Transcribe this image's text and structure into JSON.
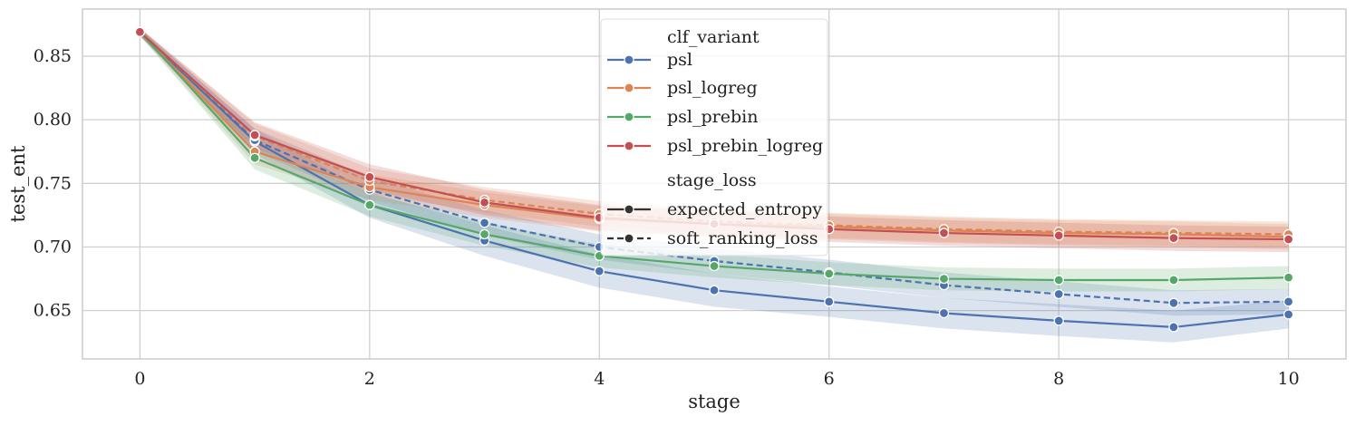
{
  "chart_data": {
    "type": "line",
    "xlabel": "stage",
    "ylabel": "test_ent",
    "xlim": [
      -0.5,
      10.5
    ],
    "ylim": [
      0.612,
      0.887
    ],
    "x_ticks": [
      0,
      2,
      4,
      6,
      8,
      10
    ],
    "x_tick_labels": [
      "0",
      "2",
      "4",
      "6",
      "8",
      "10"
    ],
    "y_ticks": [
      0.65,
      0.7,
      0.75,
      0.8,
      0.85
    ],
    "y_tick_labels": [
      "0.65",
      "0.70",
      "0.75",
      "0.80",
      "0.85"
    ],
    "grid": true,
    "legend_placement": "top-center",
    "legend": {
      "hue_title": "clf_variant",
      "style_title": "stage_loss",
      "hue_entries": [
        "psl",
        "psl_logreg",
        "psl_prebin",
        "psl_prebin_logreg"
      ],
      "style_entries": [
        "expected_entropy",
        "soft_ranking_loss"
      ]
    },
    "colors": {
      "psl": "#4c72b0",
      "psl_logreg": "#dd8452",
      "psl_prebin": "#55a868",
      "psl_prebin_logreg": "#c44e52",
      "legend_neutral": "#333333"
    },
    "x": [
      0,
      1,
      2,
      3,
      4,
      5,
      6,
      7,
      8,
      9,
      10
    ],
    "series": [
      {
        "clf_variant": "psl",
        "stage_loss": "expected_entropy",
        "values": [
          0.869,
          0.783,
          0.733,
          0.705,
          0.681,
          0.666,
          0.657,
          0.648,
          0.642,
          0.637,
          0.647
        ],
        "band": [
          [
            0.866,
            0.872
          ],
          [
            0.773,
            0.793
          ],
          [
            0.723,
            0.743
          ],
          [
            0.693,
            0.717
          ],
          [
            0.668,
            0.694
          ],
          [
            0.653,
            0.679
          ],
          [
            0.645,
            0.669
          ],
          [
            0.636,
            0.66
          ],
          [
            0.63,
            0.655
          ],
          [
            0.625,
            0.65
          ],
          [
            0.636,
            0.658
          ]
        ]
      },
      {
        "clf_variant": "psl",
        "stage_loss": "soft_ranking_loss",
        "values": [
          0.869,
          0.784,
          0.745,
          0.719,
          0.7,
          0.689,
          0.68,
          0.67,
          0.663,
          0.656,
          0.657
        ],
        "band": [
          [
            0.866,
            0.872
          ],
          [
            0.775,
            0.793
          ],
          [
            0.736,
            0.755
          ],
          [
            0.709,
            0.729
          ],
          [
            0.69,
            0.71
          ],
          [
            0.679,
            0.699
          ],
          [
            0.67,
            0.69
          ],
          [
            0.66,
            0.68
          ],
          [
            0.653,
            0.673
          ],
          [
            0.646,
            0.666
          ],
          [
            0.647,
            0.667
          ]
        ]
      },
      {
        "clf_variant": "psl_logreg",
        "stage_loss": "expected_entropy",
        "values": [
          0.869,
          0.775,
          0.747,
          0.733,
          0.722,
          0.718,
          0.716,
          0.713,
          0.711,
          0.71,
          0.708
        ],
        "band": [
          [
            0.866,
            0.872
          ],
          [
            0.765,
            0.785
          ],
          [
            0.737,
            0.757
          ],
          [
            0.723,
            0.743
          ],
          [
            0.712,
            0.732
          ],
          [
            0.708,
            0.728
          ],
          [
            0.706,
            0.726
          ],
          [
            0.703,
            0.723
          ],
          [
            0.701,
            0.721
          ],
          [
            0.7,
            0.72
          ],
          [
            0.698,
            0.718
          ]
        ]
      },
      {
        "clf_variant": "psl_logreg",
        "stage_loss": "soft_ranking_loss",
        "values": [
          0.869,
          0.787,
          0.752,
          0.737,
          0.726,
          0.72,
          0.717,
          0.714,
          0.712,
          0.711,
          0.71
        ],
        "band": [
          [
            0.866,
            0.872
          ],
          [
            0.777,
            0.797
          ],
          [
            0.742,
            0.762
          ],
          [
            0.727,
            0.747
          ],
          [
            0.716,
            0.736
          ],
          [
            0.71,
            0.73
          ],
          [
            0.707,
            0.727
          ],
          [
            0.704,
            0.724
          ],
          [
            0.702,
            0.722
          ],
          [
            0.701,
            0.721
          ],
          [
            0.7,
            0.72
          ]
        ]
      },
      {
        "clf_variant": "psl_prebin",
        "stage_loss": "expected_entropy",
        "values": [
          0.869,
          0.77,
          0.733,
          0.71,
          0.693,
          0.685,
          0.679,
          0.675,
          0.674,
          0.674,
          0.676
        ],
        "band": [
          [
            0.866,
            0.872
          ],
          [
            0.761,
            0.779
          ],
          [
            0.724,
            0.742
          ],
          [
            0.701,
            0.719
          ],
          [
            0.684,
            0.702
          ],
          [
            0.676,
            0.694
          ],
          [
            0.67,
            0.688
          ],
          [
            0.666,
            0.684
          ],
          [
            0.665,
            0.683
          ],
          [
            0.665,
            0.683
          ],
          [
            0.667,
            0.685
          ]
        ]
      },
      {
        "clf_variant": "psl_prebin_logreg",
        "stage_loss": "expected_entropy",
        "values": [
          0.869,
          0.788,
          0.755,
          0.735,
          0.723,
          0.718,
          0.714,
          0.711,
          0.709,
          0.707,
          0.706
        ],
        "band": [
          [
            0.866,
            0.872
          ],
          [
            0.778,
            0.798
          ],
          [
            0.745,
            0.765
          ],
          [
            0.725,
            0.745
          ],
          [
            0.713,
            0.733
          ],
          [
            0.708,
            0.728
          ],
          [
            0.704,
            0.724
          ],
          [
            0.701,
            0.721
          ],
          [
            0.699,
            0.719
          ],
          [
            0.697,
            0.717
          ],
          [
            0.696,
            0.716
          ]
        ]
      }
    ]
  }
}
